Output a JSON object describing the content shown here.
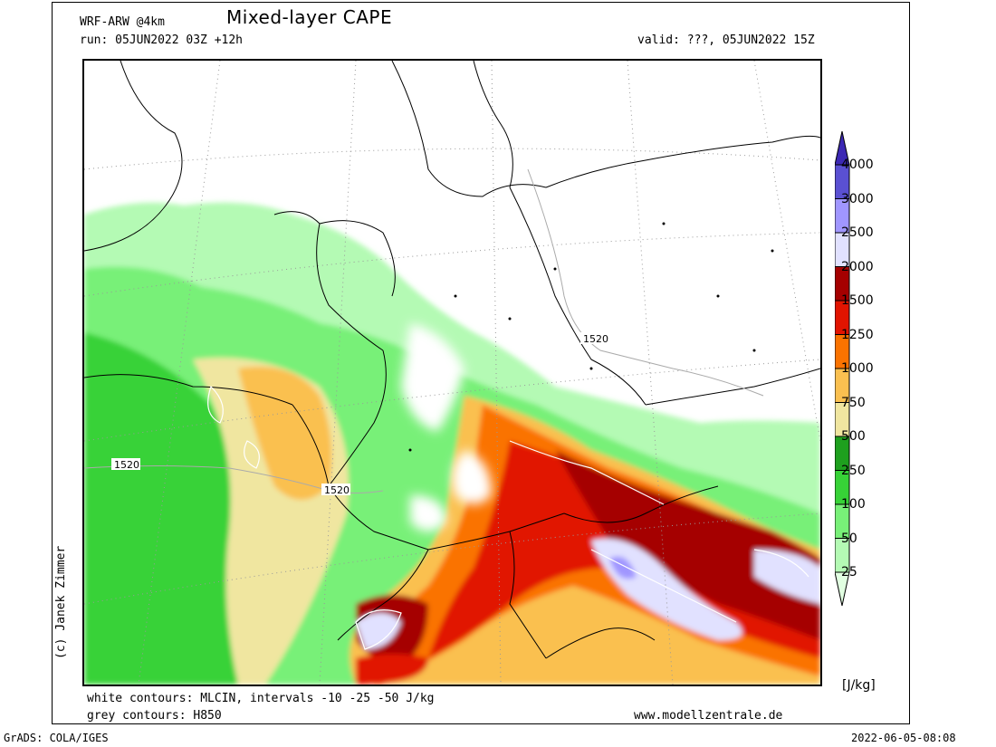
{
  "header": {
    "model": "WRF-ARW @4km",
    "title": "Mixed-layer CAPE",
    "run": "run: 05JUN2022 03Z +12h",
    "valid": "valid: ???, 05JUN2022 15Z"
  },
  "footer": {
    "white_contours": "white contours: MLCIN, intervals -10 -25 -50 J/kg",
    "grey_contours": "grey contours: H850",
    "website": "www.modellzentrale.de",
    "grads": "GrADS: COLA/IGES",
    "timestamp": "2022-06-05-08:08"
  },
  "credit": "(c) Janek Zimmer",
  "map": {
    "height_labels": [
      "1520",
      "1520",
      "1520"
    ]
  },
  "legend": {
    "unit": "[J/kg]",
    "levels": [
      "25",
      "50",
      "100",
      "250",
      "500",
      "750",
      "1000",
      "1250",
      "1500",
      "2000",
      "2500",
      "3000",
      "4000"
    ],
    "colors": [
      "#e1ffe1",
      "#b4fab4",
      "#78f078",
      "#37d237",
      "#1ea01e",
      "#f0e6a0",
      "#fac050",
      "#fa7300",
      "#e11400",
      "#a50000",
      "#e1e1ff",
      "#a096ff",
      "#5a50d2",
      "#3c28b4"
    ]
  }
}
